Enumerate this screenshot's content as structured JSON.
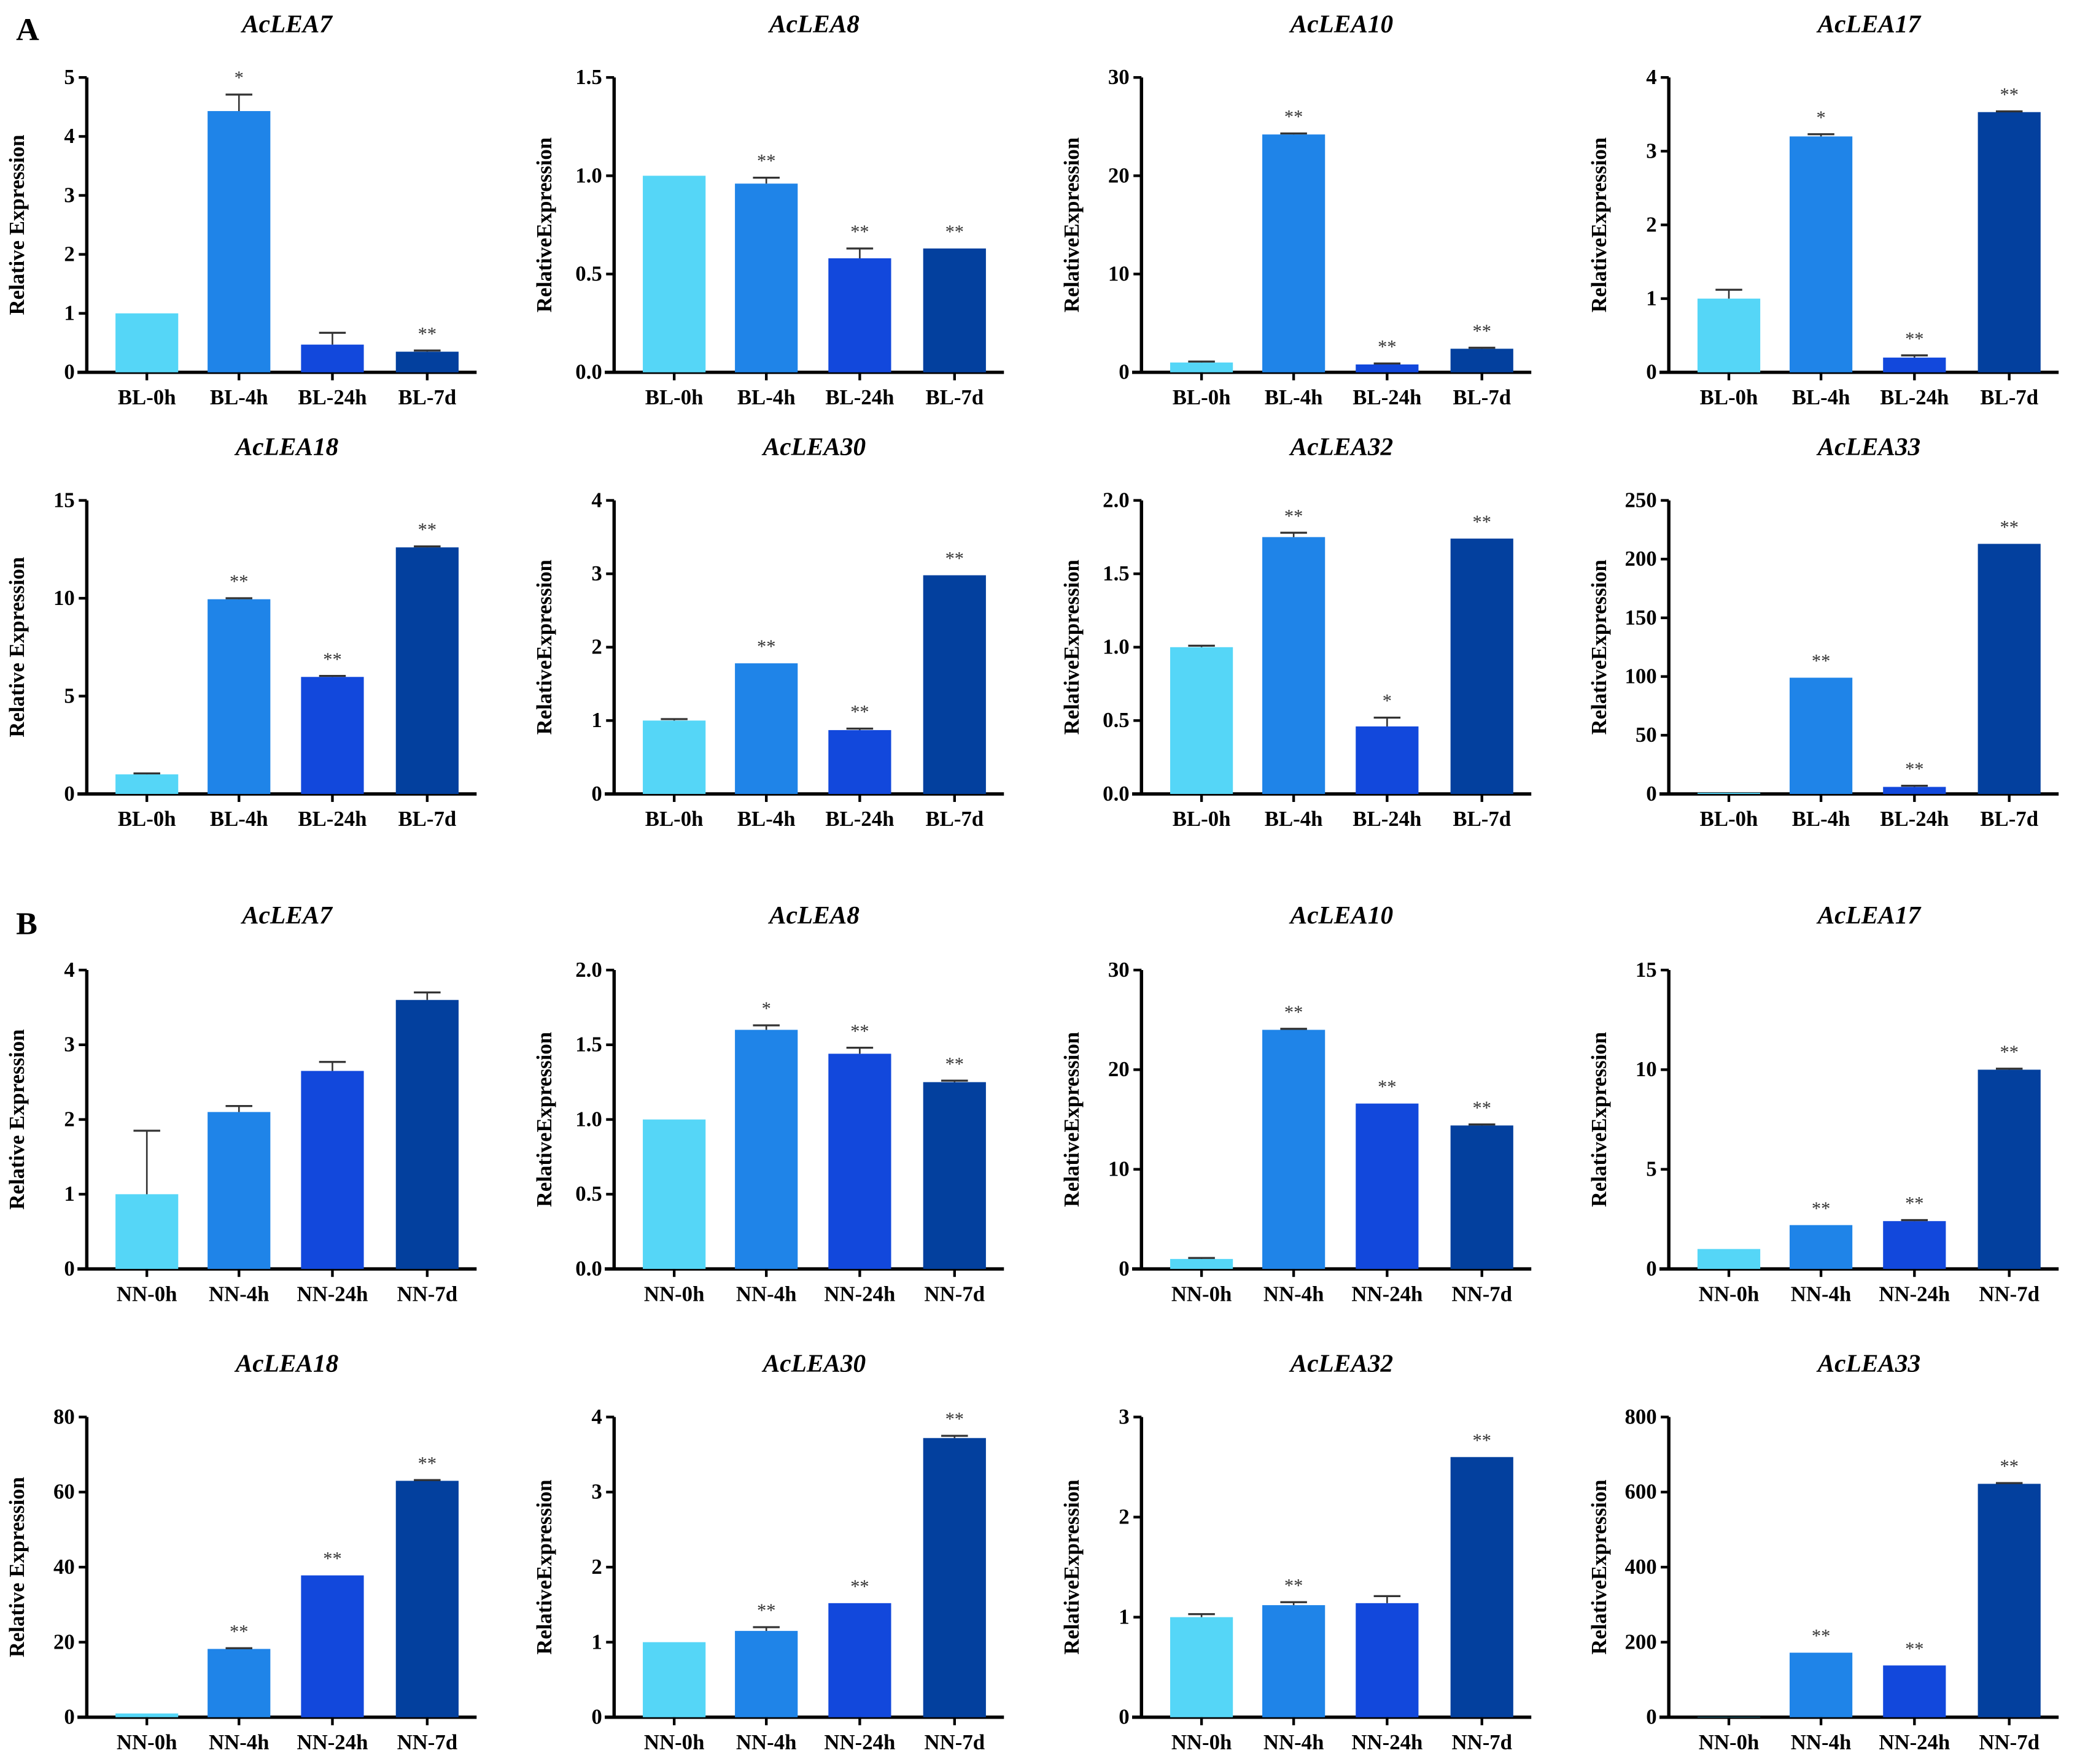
{
  "panel_labels": [
    "A",
    "B"
  ],
  "colors": [
    "#55d6f7",
    "#1f84e8",
    "#1248dc",
    "#03409e"
  ],
  "chart_data": [
    {
      "type": "bar",
      "panel": "A",
      "title": "AcLEA7",
      "ylabel": "Relative Expression",
      "categories": [
        "BL-0h",
        "BL-4h",
        "BL-24h",
        "BL-7d"
      ],
      "values": [
        1,
        4.43,
        0.47,
        0.35
      ],
      "errors": [
        0,
        0.28,
        0.2,
        0.02
      ],
      "significance": [
        "",
        "*",
        "",
        "**"
      ],
      "ylim": [
        0,
        5
      ],
      "yticks": [
        0,
        1,
        2,
        3,
        4,
        5
      ],
      "ytick_labels": [
        "0",
        "1",
        "2",
        "3",
        "4",
        "5"
      ]
    },
    {
      "type": "bar",
      "panel": "A",
      "title": "AcLEA8",
      "ylabel": "RelativeExpression",
      "categories": [
        "BL-0h",
        "BL-4h",
        "BL-24h",
        "BL-7d"
      ],
      "values": [
        1,
        0.96,
        0.58,
        0.63
      ],
      "errors": [
        0,
        0.03,
        0.05,
        0
      ],
      "significance": [
        "",
        "**",
        "**",
        "**"
      ],
      "ylim": [
        0,
        1.5
      ],
      "yticks": [
        0,
        0.5,
        1,
        1.5
      ],
      "ytick_labels": [
        "0.0",
        "0.5",
        "1.0",
        "1.5"
      ]
    },
    {
      "type": "bar",
      "panel": "A",
      "title": "AcLEA10",
      "ylabel": "RelativeExpression",
      "categories": [
        "BL-0h",
        "BL-4h",
        "BL-24h",
        "BL-7d"
      ],
      "values": [
        1,
        24.2,
        0.8,
        2.4
      ],
      "errors": [
        0.1,
        0.1,
        0.1,
        0.1
      ],
      "significance": [
        "",
        "**",
        "**",
        "**"
      ],
      "ylim": [
        0,
        30
      ],
      "yticks": [
        0,
        10,
        20,
        30
      ],
      "ytick_labels": [
        "0",
        "10",
        "20",
        "30"
      ]
    },
    {
      "type": "bar",
      "panel": "A",
      "title": "AcLEA17",
      "ylabel": "RelativeExpression",
      "categories": [
        "BL-0h",
        "BL-4h",
        "BL-24h",
        "BL-7d"
      ],
      "values": [
        1,
        3.2,
        0.2,
        3.53
      ],
      "errors": [
        0.12,
        0.03,
        0.03,
        0.01
      ],
      "significance": [
        "",
        "*",
        "**",
        "**"
      ],
      "ylim": [
        0,
        4
      ],
      "yticks": [
        0,
        1,
        2,
        3,
        4
      ],
      "ytick_labels": [
        "0",
        "1",
        "2",
        "3",
        "4"
      ]
    },
    {
      "type": "bar",
      "panel": "A",
      "title": "AcLEA18",
      "ylabel": "Relative Expression",
      "categories": [
        "BL-0h",
        "BL-4h",
        "BL-24h",
        "BL-7d"
      ],
      "values": [
        1,
        9.95,
        5.98,
        12.6
      ],
      "errors": [
        0.05,
        0.05,
        0.05,
        0.05
      ],
      "significance": [
        "",
        "**",
        "**",
        "**"
      ],
      "ylim": [
        0,
        15
      ],
      "yticks": [
        0,
        5,
        10,
        15
      ],
      "ytick_labels": [
        "0",
        "5",
        "10",
        "15"
      ]
    },
    {
      "type": "bar",
      "panel": "A",
      "title": "AcLEA30",
      "ylabel": "RelativeExpression",
      "categories": [
        "BL-0h",
        "BL-4h",
        "BL-24h",
        "BL-7d"
      ],
      "values": [
        1,
        1.78,
        0.87,
        2.98
      ],
      "errors": [
        0.02,
        0,
        0.02,
        0
      ],
      "significance": [
        "",
        "**",
        "**",
        "**"
      ],
      "ylim": [
        0,
        4
      ],
      "yticks": [
        0,
        1,
        2,
        3,
        4
      ],
      "ytick_labels": [
        "0",
        "1",
        "2",
        "3",
        "4"
      ]
    },
    {
      "type": "bar",
      "panel": "A",
      "title": "AcLEA32",
      "ylabel": "RelativeExpression",
      "categories": [
        "BL-0h",
        "BL-4h",
        "BL-24h",
        "BL-7d"
      ],
      "values": [
        1,
        1.75,
        0.46,
        1.74
      ],
      "errors": [
        0.01,
        0.03,
        0.06,
        0
      ],
      "significance": [
        "",
        "**",
        "*",
        "**"
      ],
      "ylim": [
        0,
        2
      ],
      "yticks": [
        0,
        0.5,
        1,
        1.5,
        2
      ],
      "ytick_labels": [
        "0.0",
        "0.5",
        "1.0",
        "1.5",
        "2.0"
      ]
    },
    {
      "type": "bar",
      "panel": "A",
      "title": "AcLEA33",
      "ylabel": "RelativeExpression",
      "categories": [
        "BL-0h",
        "BL-4h",
        "BL-24h",
        "BL-7d"
      ],
      "values": [
        1,
        99,
        6,
        213
      ],
      "errors": [
        0,
        0,
        1,
        0
      ],
      "significance": [
        "",
        "**",
        "**",
        "**"
      ],
      "ylim": [
        0,
        250
      ],
      "yticks": [
        0,
        50,
        100,
        150,
        200,
        250
      ],
      "ytick_labels": [
        "0",
        "50",
        "100",
        "150",
        "200",
        "250"
      ]
    },
    {
      "type": "bar",
      "panel": "B",
      "title": "AcLEA7",
      "ylabel": "Relative Expression",
      "categories": [
        "NN-0h",
        "NN-4h",
        "NN-24h",
        "NN-7d"
      ],
      "values": [
        1,
        2.1,
        2.65,
        3.6
      ],
      "errors": [
        0.85,
        0.08,
        0.12,
        0.1
      ],
      "significance": [
        "",
        "",
        "",
        ""
      ],
      "ylim": [
        0,
        4
      ],
      "yticks": [
        0,
        1,
        2,
        3,
        4
      ],
      "ytick_labels": [
        "0",
        "1",
        "2",
        "3",
        "4"
      ]
    },
    {
      "type": "bar",
      "panel": "B",
      "title": "AcLEA8",
      "ylabel": "RelativeExpression",
      "categories": [
        "NN-0h",
        "NN-4h",
        "NN-24h",
        "NN-7d"
      ],
      "values": [
        1,
        1.6,
        1.44,
        1.25
      ],
      "errors": [
        0,
        0.03,
        0.04,
        0.01
      ],
      "significance": [
        "",
        "*",
        "**",
        "**"
      ],
      "ylim": [
        0,
        2
      ],
      "yticks": [
        0,
        0.5,
        1,
        1.5,
        2
      ],
      "ytick_labels": [
        "0.0",
        "0.5",
        "1.0",
        "1.5",
        "2.0"
      ]
    },
    {
      "type": "bar",
      "panel": "B",
      "title": "AcLEA10",
      "ylabel": "RelativeExpression",
      "categories": [
        "NN-0h",
        "NN-4h",
        "NN-24h",
        "NN-7d"
      ],
      "values": [
        1,
        24,
        16.6,
        14.4
      ],
      "errors": [
        0.1,
        0.1,
        0,
        0.1
      ],
      "significance": [
        "",
        "**",
        "**",
        "**"
      ],
      "ylim": [
        0,
        30
      ],
      "yticks": [
        0,
        10,
        20,
        30
      ],
      "ytick_labels": [
        "0",
        "10",
        "20",
        "30"
      ]
    },
    {
      "type": "bar",
      "panel": "B",
      "title": "AcLEA17",
      "ylabel": "RelativeExpression",
      "categories": [
        "NN-0h",
        "NN-4h",
        "NN-24h",
        "NN-7d"
      ],
      "values": [
        1,
        2.2,
        2.4,
        10
      ],
      "errors": [
        0,
        0,
        0.05,
        0.05
      ],
      "significance": [
        "",
        "**",
        "**",
        "**"
      ],
      "ylim": [
        0,
        15
      ],
      "yticks": [
        0,
        5,
        10,
        15
      ],
      "ytick_labels": [
        "0",
        "5",
        "10",
        "15"
      ]
    },
    {
      "type": "bar",
      "panel": "B",
      "title": "AcLEA18",
      "ylabel": "Relative Expression",
      "categories": [
        "NN-0h",
        "NN-4h",
        "NN-24h",
        "NN-7d"
      ],
      "values": [
        1,
        18.2,
        37.8,
        63
      ],
      "errors": [
        0,
        0.2,
        0,
        0.2
      ],
      "significance": [
        "",
        "**",
        "**",
        "**"
      ],
      "ylim": [
        0,
        80
      ],
      "yticks": [
        0,
        20,
        40,
        60,
        80
      ],
      "ytick_labels": [
        "0",
        "20",
        "40",
        "60",
        "80"
      ]
    },
    {
      "type": "bar",
      "panel": "B",
      "title": "AcLEA30",
      "ylabel": "RelativeExpression",
      "categories": [
        "NN-0h",
        "NN-4h",
        "NN-24h",
        "NN-7d"
      ],
      "values": [
        1,
        1.15,
        1.52,
        3.72
      ],
      "errors": [
        0,
        0.05,
        0,
        0.03
      ],
      "significance": [
        "",
        "**",
        "**",
        "**"
      ],
      "ylim": [
        0,
        4
      ],
      "yticks": [
        0,
        1,
        2,
        3,
        4
      ],
      "ytick_labels": [
        "0",
        "1",
        "2",
        "3",
        "4"
      ]
    },
    {
      "type": "bar",
      "panel": "B",
      "title": "AcLEA32",
      "ylabel": "RelativeExpression",
      "categories": [
        "NN-0h",
        "NN-4h",
        "NN-24h",
        "NN-7d"
      ],
      "values": [
        1,
        1.12,
        1.14,
        2.6
      ],
      "errors": [
        0.03,
        0.03,
        0.07,
        0
      ],
      "significance": [
        "",
        "**",
        "",
        "**"
      ],
      "ylim": [
        0,
        3
      ],
      "yticks": [
        0,
        1,
        2,
        3
      ],
      "ytick_labels": [
        "0",
        "1",
        "2",
        "3"
      ]
    },
    {
      "type": "bar",
      "panel": "B",
      "title": "AcLEA33",
      "ylabel": "RelativeExpression",
      "categories": [
        "NN-0h",
        "NN-4h",
        "NN-24h",
        "NN-7d"
      ],
      "values": [
        1,
        172,
        138,
        622
      ],
      "errors": [
        0,
        0,
        0,
        2
      ],
      "significance": [
        "",
        "**",
        "**",
        "**"
      ],
      "ylim": [
        0,
        800
      ],
      "yticks": [
        0,
        200,
        400,
        600,
        800
      ],
      "ytick_labels": [
        "0",
        "200",
        "400",
        "600",
        "800"
      ]
    }
  ]
}
